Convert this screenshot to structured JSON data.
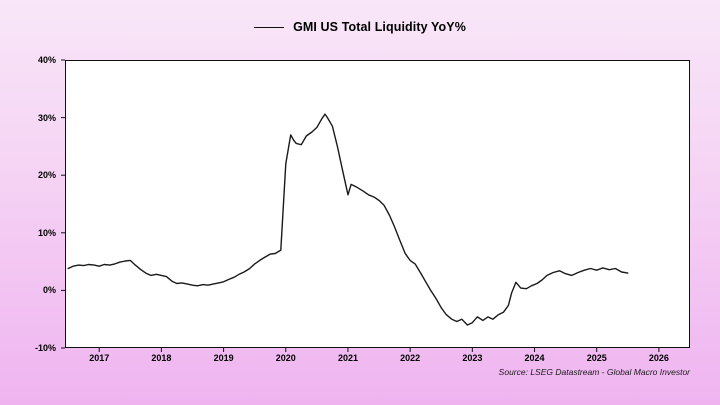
{
  "chart_data": {
    "type": "line",
    "title": "GMI US Total Liquidity YoY%",
    "xlabel": "",
    "ylabel": "",
    "xlim": [
      2016.45,
      2026.5
    ],
    "ylim": [
      -10,
      40
    ],
    "grid": false,
    "legend_position": "top-center",
    "plot_background": "#ffffff",
    "page_background_gradient": [
      "#f8e7f8",
      "#efb4f0"
    ],
    "axis_color": "#111111",
    "yticks": [
      {
        "value": 40,
        "label": "40%"
      },
      {
        "value": 30,
        "label": "30%"
      },
      {
        "value": 20,
        "label": "20%"
      },
      {
        "value": 10,
        "label": "10%"
      },
      {
        "value": 0,
        "label": "0%"
      },
      {
        "value": -10,
        "label": "-10%"
      }
    ],
    "xticks": [
      {
        "value": 2017,
        "label": "2017"
      },
      {
        "value": 2018,
        "label": "2018"
      },
      {
        "value": 2019,
        "label": "2019"
      },
      {
        "value": 2020,
        "label": "2020"
      },
      {
        "value": 2021,
        "label": "2021"
      },
      {
        "value": 2022,
        "label": "2022"
      },
      {
        "value": 2023,
        "label": "2023"
      },
      {
        "value": 2024,
        "label": "2024"
      },
      {
        "value": 2025,
        "label": "2025"
      },
      {
        "value": 2026,
        "label": "2026"
      }
    ],
    "series": [
      {
        "name": "GMI US Total Liquidity YoY%",
        "color": "#1a1a1a",
        "data": [
          [
            2016.5,
            3.8
          ],
          [
            2016.58,
            4.2
          ],
          [
            2016.67,
            4.4
          ],
          [
            2016.75,
            4.3
          ],
          [
            2016.83,
            4.5
          ],
          [
            2016.92,
            4.4
          ],
          [
            2017.0,
            4.2
          ],
          [
            2017.08,
            4.5
          ],
          [
            2017.17,
            4.4
          ],
          [
            2017.25,
            4.6
          ],
          [
            2017.33,
            4.9
          ],
          [
            2017.42,
            5.1
          ],
          [
            2017.5,
            5.2
          ],
          [
            2017.58,
            4.4
          ],
          [
            2017.67,
            3.6
          ],
          [
            2017.75,
            3.0
          ],
          [
            2017.83,
            2.6
          ],
          [
            2017.92,
            2.8
          ],
          [
            2018.0,
            2.6
          ],
          [
            2018.08,
            2.4
          ],
          [
            2018.17,
            1.6
          ],
          [
            2018.25,
            1.2
          ],
          [
            2018.33,
            1.3
          ],
          [
            2018.42,
            1.1
          ],
          [
            2018.5,
            0.9
          ],
          [
            2018.58,
            0.8
          ],
          [
            2018.67,
            1.0
          ],
          [
            2018.75,
            0.9
          ],
          [
            2018.83,
            1.1
          ],
          [
            2018.92,
            1.3
          ],
          [
            2019.0,
            1.5
          ],
          [
            2019.08,
            1.9
          ],
          [
            2019.17,
            2.3
          ],
          [
            2019.25,
            2.8
          ],
          [
            2019.33,
            3.2
          ],
          [
            2019.42,
            3.8
          ],
          [
            2019.5,
            4.6
          ],
          [
            2019.58,
            5.2
          ],
          [
            2019.67,
            5.8
          ],
          [
            2019.75,
            6.3
          ],
          [
            2019.83,
            6.4
          ],
          [
            2019.92,
            7.0
          ],
          [
            2020.0,
            22.0
          ],
          [
            2020.08,
            27.0
          ],
          [
            2020.13,
            26.0
          ],
          [
            2020.17,
            25.5
          ],
          [
            2020.25,
            25.3
          ],
          [
            2020.33,
            26.8
          ],
          [
            2020.42,
            27.5
          ],
          [
            2020.5,
            28.3
          ],
          [
            2020.58,
            29.8
          ],
          [
            2020.63,
            30.6
          ],
          [
            2020.67,
            30.0
          ],
          [
            2020.75,
            28.5
          ],
          [
            2020.83,
            25.0
          ],
          [
            2020.92,
            20.5
          ],
          [
            2021.0,
            16.6
          ],
          [
            2021.05,
            18.4
          ],
          [
            2021.13,
            18.0
          ],
          [
            2021.25,
            17.2
          ],
          [
            2021.33,
            16.6
          ],
          [
            2021.42,
            16.2
          ],
          [
            2021.5,
            15.6
          ],
          [
            2021.58,
            14.8
          ],
          [
            2021.67,
            13.0
          ],
          [
            2021.75,
            11.0
          ],
          [
            2021.83,
            8.8
          ],
          [
            2021.92,
            6.4
          ],
          [
            2022.0,
            5.2
          ],
          [
            2022.08,
            4.6
          ],
          [
            2022.17,
            3.0
          ],
          [
            2022.25,
            1.5
          ],
          [
            2022.33,
            0.0
          ],
          [
            2022.42,
            -1.5
          ],
          [
            2022.5,
            -3.0
          ],
          [
            2022.58,
            -4.2
          ],
          [
            2022.67,
            -5.0
          ],
          [
            2022.75,
            -5.4
          ],
          [
            2022.83,
            -5.0
          ],
          [
            2022.92,
            -6.0
          ],
          [
            2023.0,
            -5.6
          ],
          [
            2023.08,
            -4.6
          ],
          [
            2023.17,
            -5.2
          ],
          [
            2023.25,
            -4.6
          ],
          [
            2023.33,
            -5.0
          ],
          [
            2023.42,
            -4.2
          ],
          [
            2023.5,
            -3.8
          ],
          [
            2023.58,
            -2.6
          ],
          [
            2023.63,
            -0.5
          ],
          [
            2023.7,
            1.4
          ],
          [
            2023.78,
            0.4
          ],
          [
            2023.87,
            0.3
          ],
          [
            2023.95,
            0.8
          ],
          [
            2024.04,
            1.2
          ],
          [
            2024.12,
            1.8
          ],
          [
            2024.2,
            2.6
          ],
          [
            2024.3,
            3.1
          ],
          [
            2024.4,
            3.4
          ],
          [
            2024.5,
            2.9
          ],
          [
            2024.6,
            2.6
          ],
          [
            2024.7,
            3.1
          ],
          [
            2024.8,
            3.5
          ],
          [
            2024.9,
            3.8
          ],
          [
            2025.0,
            3.5
          ],
          [
            2025.1,
            3.9
          ],
          [
            2025.2,
            3.6
          ],
          [
            2025.3,
            3.8
          ],
          [
            2025.4,
            3.2
          ],
          [
            2025.5,
            3.0
          ]
        ]
      }
    ],
    "source": "Source: LSEG Datastream - Global Macro Investor"
  }
}
